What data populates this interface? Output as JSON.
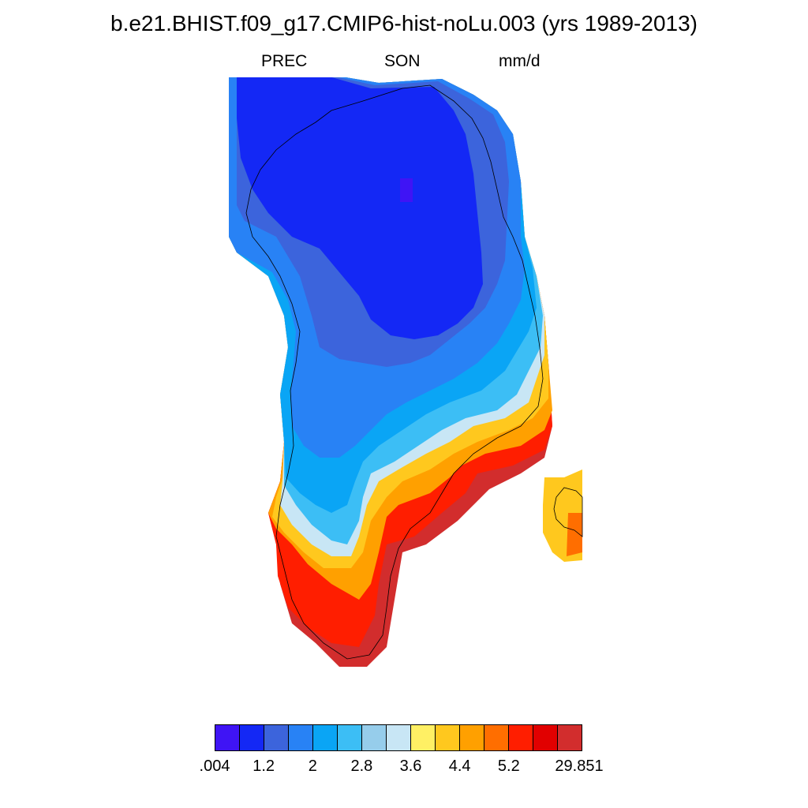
{
  "title": "b.e21.BHIST.f09_g17.CMIP6-hist-noLu.003 (yrs 1989-2013)",
  "subtitles": {
    "variable": "PREC",
    "season": "SON",
    "units": "mm/d"
  },
  "colorbar": {
    "colors": [
      "#3f14f5",
      "#1428f5",
      "#3c64dc",
      "#2882f5",
      "#0aa5f5",
      "#3cbef5",
      "#96cdeb",
      "#c8e6f5",
      "#fff064",
      "#ffc81e",
      "#ffa000",
      "#ff6e00",
      "#ff1e00",
      "#e10000",
      "#d22d2d"
    ],
    "labels": [
      ".004",
      "1.2",
      "2",
      "2.8",
      "3.6",
      "4.4",
      "5.2",
      "29.851"
    ]
  }
}
